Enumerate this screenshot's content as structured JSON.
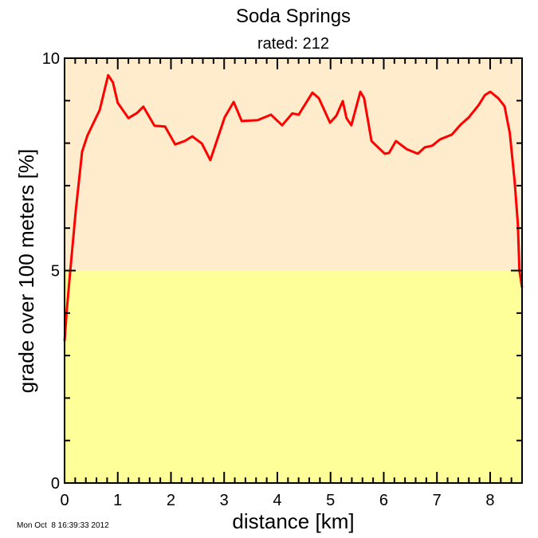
{
  "chart_data": {
    "type": "line",
    "title": "Soda Springs",
    "subtitle": "rated: 212",
    "xlabel": "distance [km]",
    "ylabel": "grade over 100 meters [%]",
    "xlim": [
      0,
      8.6
    ],
    "ylim": [
      0,
      10
    ],
    "xticks": [
      "0",
      "1",
      "2",
      "3",
      "4",
      "5",
      "6",
      "7",
      "8"
    ],
    "yticks": [
      "0",
      "5",
      "10"
    ],
    "grid": false,
    "bands": [
      {
        "from": 0,
        "to": 5,
        "color": "#ffff99"
      },
      {
        "from": 5,
        "to": 10,
        "color": "#ffeccc"
      }
    ],
    "line_color": "#ff0000",
    "series": [
      {
        "x": [
          0,
          0.04,
          0.1,
          0.21,
          0.33,
          0.43,
          0.66,
          0.82,
          0.91,
          1.0,
          1.2,
          1.36,
          1.48,
          1.69,
          1.89,
          2.08,
          2.26,
          2.4,
          2.58,
          2.74,
          3.01,
          3.18,
          3.33,
          3.63,
          3.88,
          4.09,
          4.28,
          4.4,
          4.66,
          4.78,
          4.99,
          5.11,
          5.23,
          5.3,
          5.39,
          5.56,
          5.63,
          5.77,
          6.02,
          6.1,
          6.23,
          6.43,
          6.64,
          6.77,
          6.91,
          7.06,
          7.28,
          7.45,
          7.6,
          7.78,
          7.9,
          8.0,
          8.15,
          8.27,
          8.37,
          8.46,
          8.52,
          8.55,
          8.6
        ],
        "y": [
          3.34,
          4.05,
          4.9,
          6.4,
          7.8,
          8.18,
          8.78,
          9.6,
          9.43,
          8.95,
          8.59,
          8.71,
          8.86,
          8.41,
          8.39,
          7.97,
          8.05,
          8.16,
          7.99,
          7.6,
          8.61,
          8.97,
          8.52,
          8.54,
          8.67,
          8.42,
          8.7,
          8.67,
          9.19,
          9.06,
          8.48,
          8.65,
          8.99,
          8.59,
          8.42,
          9.21,
          9.06,
          8.05,
          7.75,
          7.77,
          8.05,
          7.86,
          7.75,
          7.9,
          7.94,
          8.09,
          8.2,
          8.44,
          8.61,
          8.89,
          9.13,
          9.21,
          9.06,
          8.87,
          8.24,
          7.1,
          6.1,
          5.0,
          4.6
        ]
      }
    ]
  },
  "footer": {
    "timestamp": "Mon Oct  8 16:39:33 2012"
  }
}
